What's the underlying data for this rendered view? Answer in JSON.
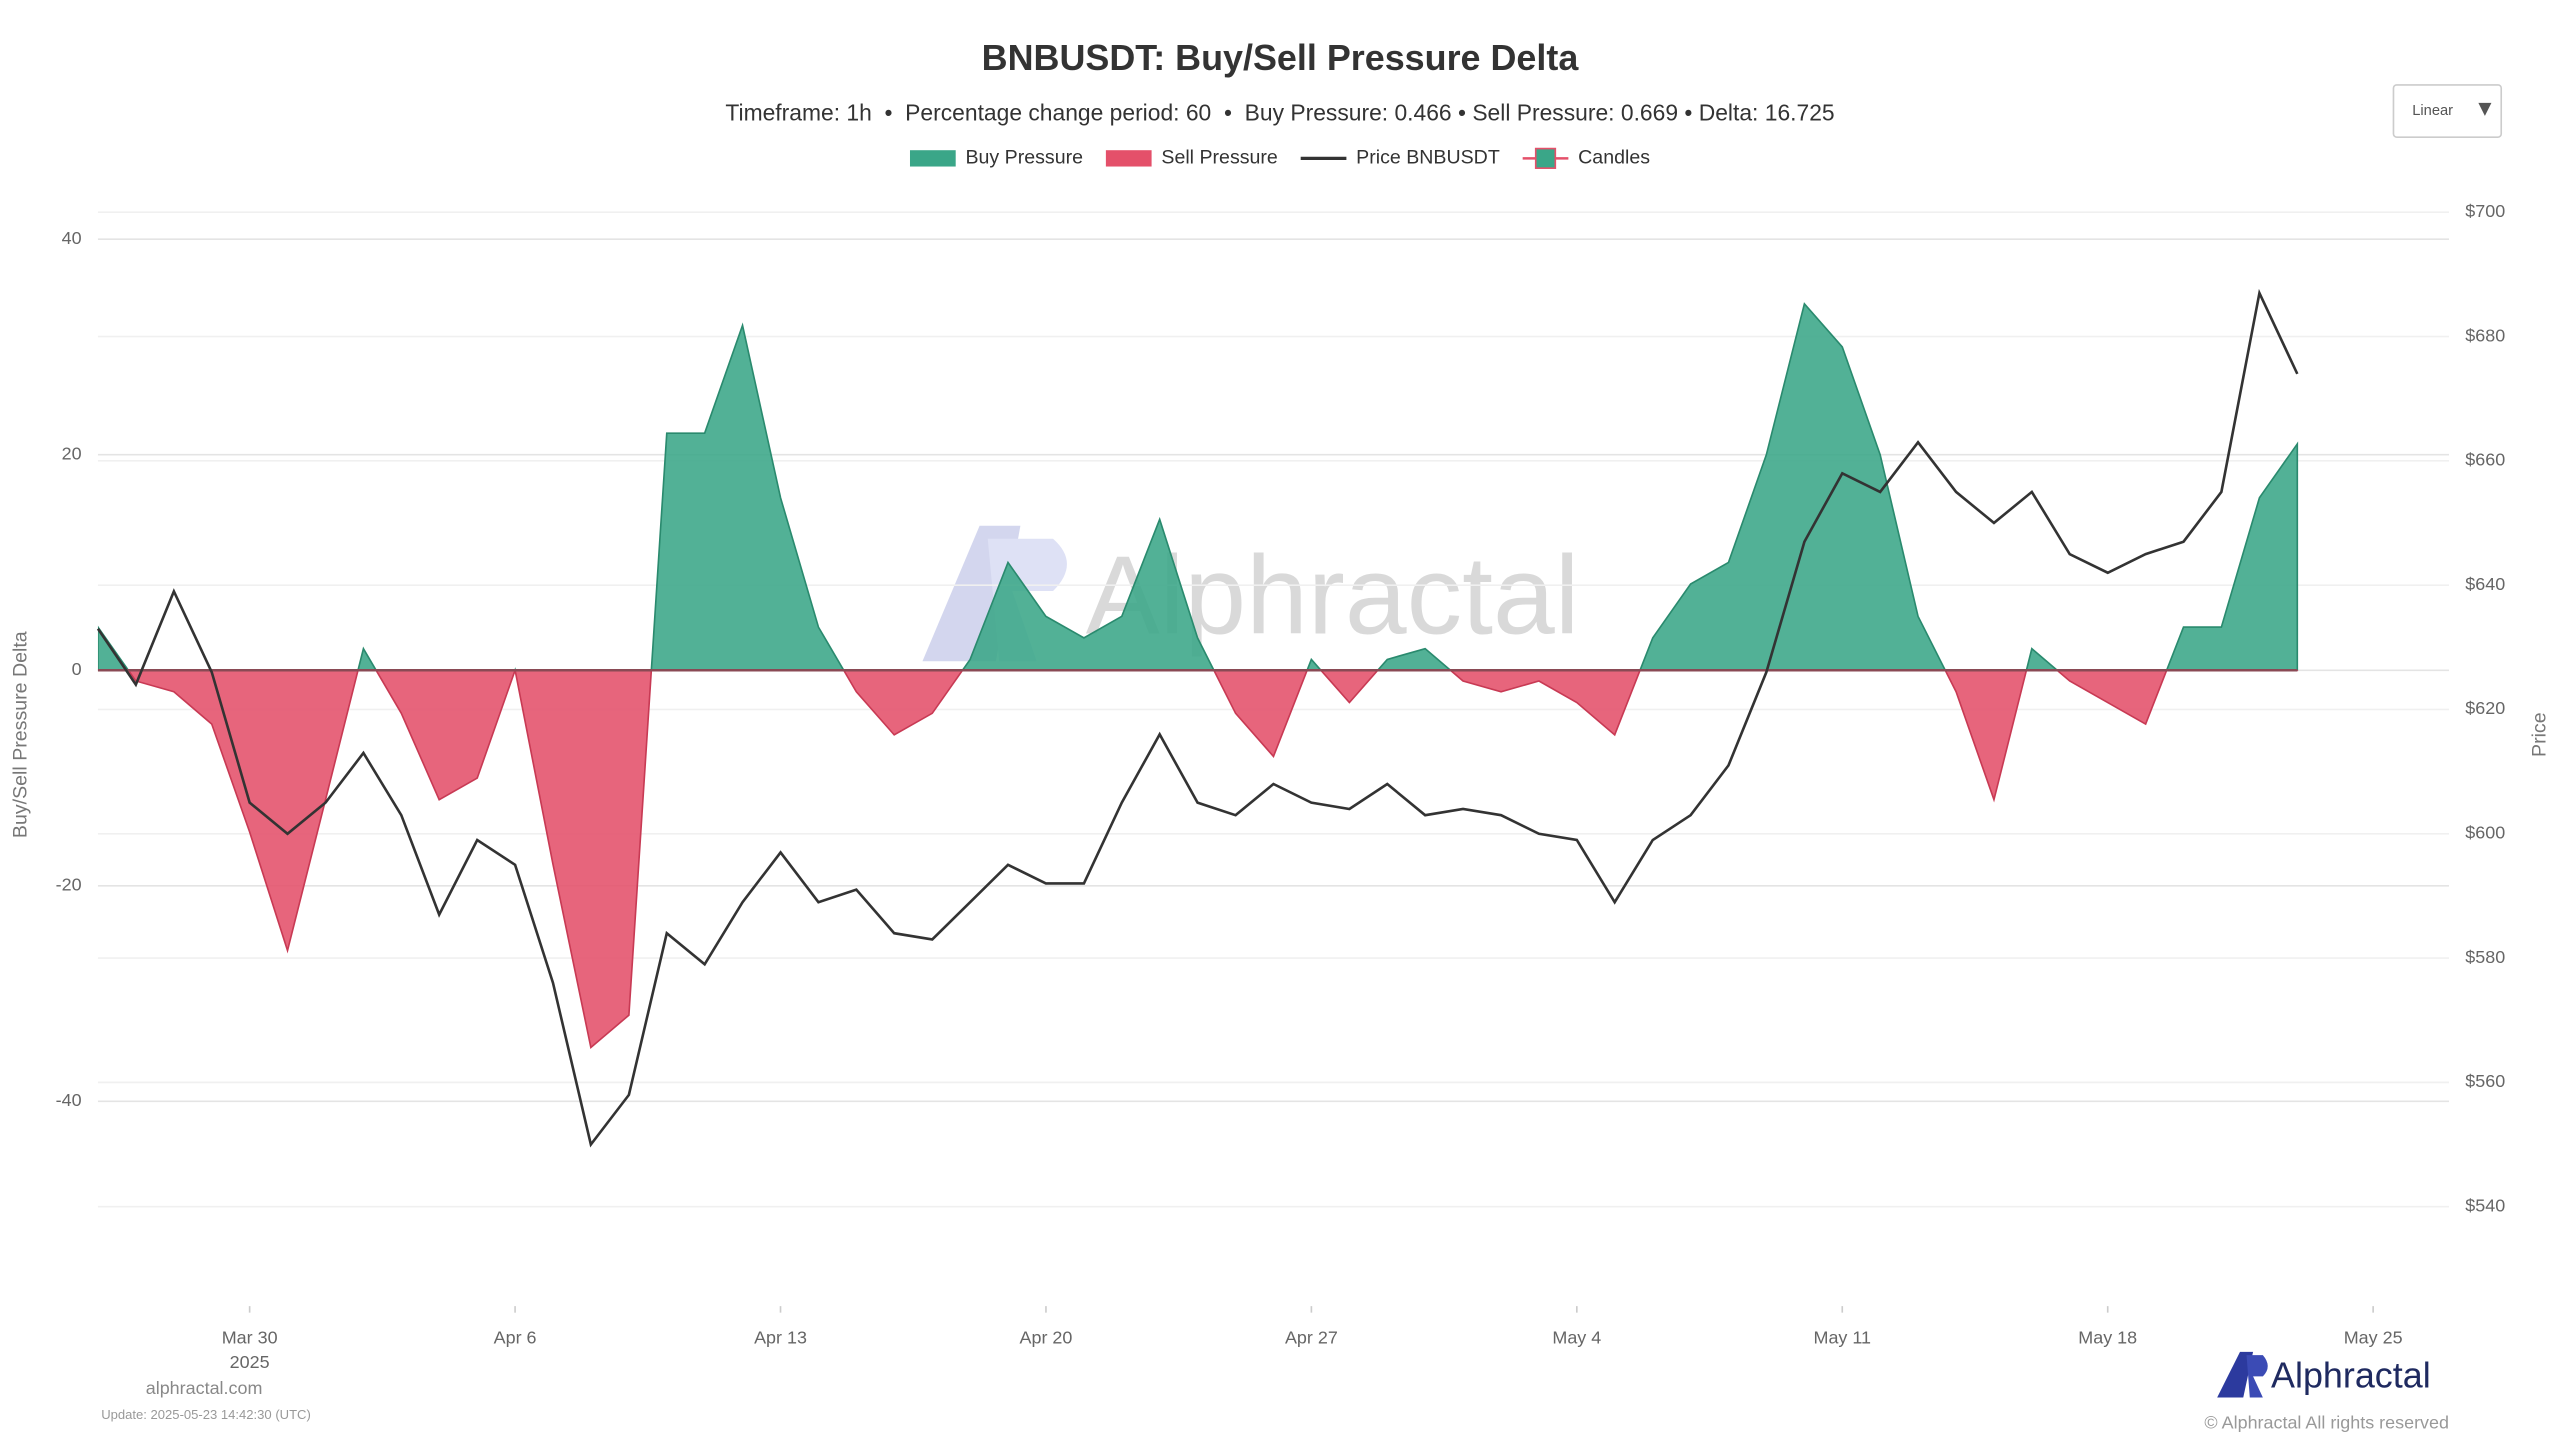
{
  "chart_data": {
    "type": "area",
    "title": "BNBUSDT: Buy/Sell Pressure Delta",
    "subtitle": "Timeframe: 1h  •  Percentage change period: 60  •  Buy Pressure: 0.466 • Sell Pressure: 0.669 • Delta: 16.725",
    "scale_control": "Linear",
    "watermark": "Alphractal",
    "ylabel": "Buy/Sell Pressure Delta",
    "y2label": "Price",
    "legend": [
      {
        "name": "Buy Pressure",
        "color": "#3aa688"
      },
      {
        "name": "Sell Pressure",
        "color": "#e4506a"
      },
      {
        "name": "Price BNBUSDT",
        "color": "#333333"
      },
      {
        "name": "Candles",
        "color": "#3aa688"
      }
    ],
    "x": [
      "2025-03-26",
      "2025-03-27",
      "2025-03-28",
      "2025-03-29",
      "2025-03-30",
      "2025-03-31",
      "2025-04-01",
      "2025-04-02",
      "2025-04-03",
      "2025-04-04",
      "2025-04-05",
      "2025-04-06",
      "2025-04-07",
      "2025-04-08",
      "2025-04-09",
      "2025-04-10",
      "2025-04-11",
      "2025-04-12",
      "2025-04-13",
      "2025-04-14",
      "2025-04-15",
      "2025-04-16",
      "2025-04-17",
      "2025-04-18",
      "2025-04-19",
      "2025-04-20",
      "2025-04-21",
      "2025-04-22",
      "2025-04-23",
      "2025-04-24",
      "2025-04-25",
      "2025-04-26",
      "2025-04-27",
      "2025-04-28",
      "2025-04-29",
      "2025-04-30",
      "2025-05-01",
      "2025-05-02",
      "2025-05-03",
      "2025-05-04",
      "2025-05-05",
      "2025-05-06",
      "2025-05-07",
      "2025-05-08",
      "2025-05-09",
      "2025-05-10",
      "2025-05-11",
      "2025-05-12",
      "2025-05-13",
      "2025-05-14",
      "2025-05-15",
      "2025-05-16",
      "2025-05-17",
      "2025-05-18",
      "2025-05-19",
      "2025-05-20",
      "2025-05-21",
      "2025-05-22",
      "2025-05-23"
    ],
    "xlim": [
      "2025-03-26",
      "2025-05-27"
    ],
    "xticks": [
      {
        "value": "2025-03-30",
        "label": "Mar 30"
      },
      {
        "value": "2025-04-06",
        "label": "Apr 6"
      },
      {
        "value": "2025-04-13",
        "label": "Apr 13"
      },
      {
        "value": "2025-04-20",
        "label": "Apr 20"
      },
      {
        "value": "2025-04-27",
        "label": "Apr 27"
      },
      {
        "value": "2025-05-04",
        "label": "May 4"
      },
      {
        "value": "2025-05-11",
        "label": "May 11"
      },
      {
        "value": "2025-05-18",
        "label": "May 18"
      },
      {
        "value": "2025-05-25",
        "label": "May 25"
      }
    ],
    "x_year_label": "2025",
    "ylim": [
      -59,
      42.5
    ],
    "yticks": [
      -40,
      -20,
      0,
      20,
      40
    ],
    "y2lim": [
      524,
      700
    ],
    "y2ticks": [
      {
        "value": 540,
        "label": "$540"
      },
      {
        "value": 560,
        "label": "$560"
      },
      {
        "value": 580,
        "label": "$580"
      },
      {
        "value": 600,
        "label": "$600"
      },
      {
        "value": 620,
        "label": "$620"
      },
      {
        "value": 640,
        "label": "$640"
      },
      {
        "value": 660,
        "label": "$660"
      },
      {
        "value": 680,
        "label": "$680"
      },
      {
        "value": 700,
        "label": "$700"
      }
    ],
    "grid": true,
    "series": [
      {
        "color_up": "#3aa688",
        "color_down": "#e4506a",
        "values": [
          4,
          -1,
          -2,
          -5,
          -15,
          -26,
          -12,
          2,
          -4,
          -12,
          -10,
          0,
          -18,
          -35,
          -32,
          22,
          22,
          32,
          16,
          4,
          -2,
          -6,
          -4,
          1,
          10,
          5,
          3,
          5,
          14,
          3,
          -4,
          -8,
          1,
          -3,
          1,
          2,
          -1,
          -2,
          -1,
          -3,
          -6,
          3,
          8,
          10,
          20,
          34,
          30,
          20,
          5,
          -2,
          -12,
          2,
          -1,
          -3,
          -5,
          4,
          4,
          16,
          21
        ]
      },
      {
        "axis": "y2",
        "color": "#333333",
        "values": [
          633,
          624,
          639,
          626,
          605,
          600,
          605,
          613,
          603,
          587,
          599,
          595,
          576,
          550,
          558,
          584,
          579,
          589,
          597,
          589,
          591,
          584,
          583,
          589,
          595,
          592,
          592,
          605,
          616,
          605,
          603,
          608,
          605,
          604,
          608,
          603,
          604,
          603,
          600,
          599,
          589,
          599,
          603,
          611,
          626,
          647,
          658,
          655,
          663,
          655,
          650,
          655,
          645,
          642,
          645,
          647,
          655,
          687,
          674
        ]
      }
    ]
  },
  "footer": {
    "site": "alphractal.com",
    "update": "Update: 2025-05-23 14:42:30 (UTC)",
    "brand": "Alphractal",
    "copyright": "© Alphractal All rights reserved"
  }
}
